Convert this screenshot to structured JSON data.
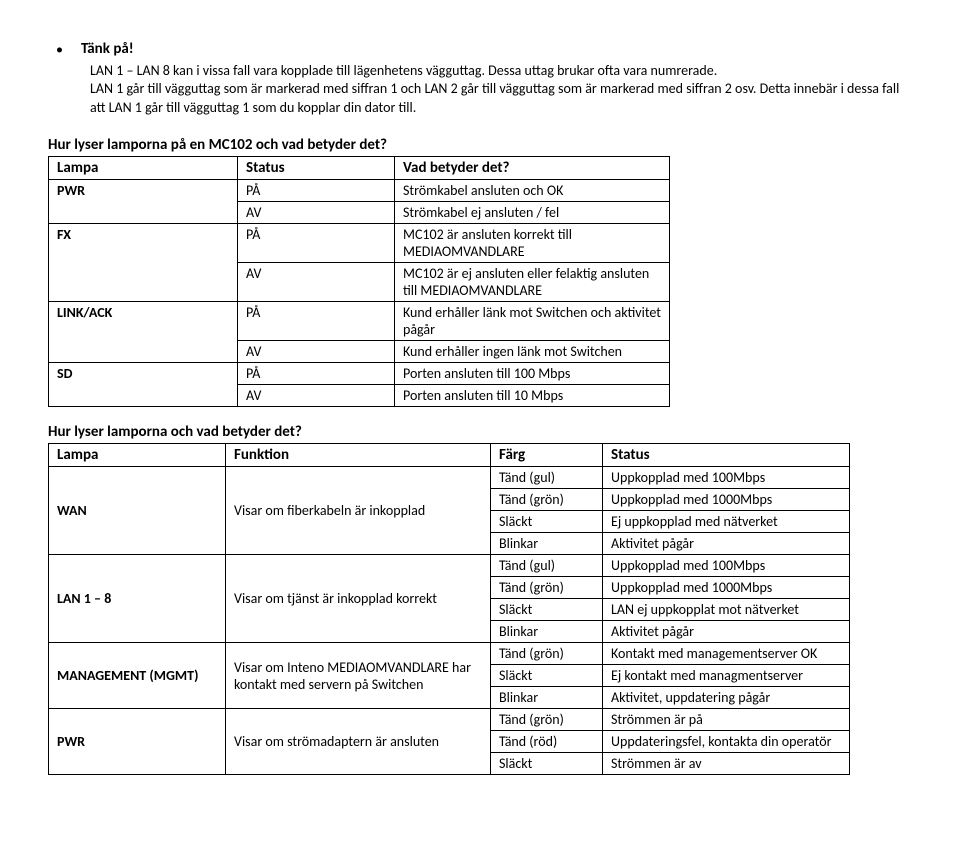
{
  "header": {
    "title": "Tänk på!",
    "paragraph": "LAN 1 – LAN 8 kan i vissa fall vara kopplade till lägenhetens vägguttag. Dessa uttag brukar ofta vara numrerade.\nLAN 1 går till vägguttag som är markerad med siffran 1 och LAN 2 går till vägguttag som är markerad med siffran 2 osv. Detta innebär i dessa fall att LAN 1 går till vägguttag 1 som du kopplar din dator till."
  },
  "table1": {
    "heading": "Hur lyser lamporna på en MC102 och vad betyder det?",
    "headers": {
      "lampa": "Lampa",
      "status": "Status",
      "vad": "Vad betyder det?"
    },
    "rows": [
      {
        "lampa": "PWR",
        "sub": [
          {
            "status": "PÅ",
            "vad": "Strömkabel ansluten och OK"
          },
          {
            "status": "AV",
            "vad": "Strömkabel ej ansluten / fel"
          }
        ]
      },
      {
        "lampa": "FX",
        "sub": [
          {
            "status": "PÅ",
            "vad": "MC102 är ansluten korrekt till MEDIAOMVANDLARE"
          },
          {
            "status": "AV",
            "vad": "MC102 är ej ansluten eller felaktig ansluten till MEDIAOMVANDLARE"
          }
        ]
      },
      {
        "lampa": "LINK/ACK",
        "sub": [
          {
            "status": "PÅ",
            "vad": "Kund erhåller länk mot Switchen och aktivitet pågår"
          },
          {
            "status": "AV",
            "vad": "Kund erhåller ingen länk mot Switchen"
          }
        ]
      },
      {
        "lampa": "SD",
        "sub": [
          {
            "status": "PÅ",
            "vad": "Porten ansluten till 100 Mbps"
          },
          {
            "status": "AV",
            "vad": "Porten ansluten till 10 Mbps"
          }
        ]
      }
    ]
  },
  "table2": {
    "heading": "Hur lyser lamporna och vad betyder det?",
    "headers": {
      "lampa": "Lampa",
      "funktion": "Funktion",
      "farg": "Färg",
      "status": "Status"
    },
    "rows": [
      {
        "lampa": "WAN",
        "funktion": "Visar om fiberkabeln är inkopplad",
        "sub": [
          {
            "farg": "Tänd (gul)",
            "status": "Uppkopplad med 100Mbps"
          },
          {
            "farg": "Tänd (grön)",
            "status": "Uppkopplad med 1000Mbps"
          },
          {
            "farg": "Släckt",
            "status": "Ej uppkopplad med nätverket"
          },
          {
            "farg": "Blinkar",
            "status": "Aktivitet pågår"
          }
        ]
      },
      {
        "lampa": "LAN 1 – 8",
        "funktion": "Visar om tjänst är inkopplad korrekt",
        "sub": [
          {
            "farg": "Tänd (gul)",
            "status": "Uppkopplad med 100Mbps"
          },
          {
            "farg": "Tänd (grön)",
            "status": "Uppkopplad med 1000Mbps"
          },
          {
            "farg": "Släckt",
            "status": "LAN ej uppkopplat mot nätverket"
          },
          {
            "farg": "Blinkar",
            "status": "Aktivitet pågår"
          }
        ]
      },
      {
        "lampa": "MANAGEMENT (MGMT)",
        "funktion": "Visar om Inteno MEDIAOMVANDLARE har kontakt med servern på Switchen",
        "sub": [
          {
            "farg": "Tänd (grön)",
            "status": "Kontakt med managementserver OK"
          },
          {
            "farg": "Släckt",
            "status": "Ej kontakt med managmentserver"
          },
          {
            "farg": "Blinkar",
            "status": "Aktivitet, uppdatering pågår"
          }
        ]
      },
      {
        "lampa": "PWR",
        "funktion": "Visar om strömadaptern är ansluten",
        "sub": [
          {
            "farg": "Tänd (grön)",
            "status": "Strömmen är på"
          },
          {
            "farg": "Tänd (röd)",
            "status": "Uppdateringsfel, kontakta din operatör"
          },
          {
            "farg": "Släckt",
            "status": "Strömmen är av"
          }
        ]
      }
    ]
  }
}
